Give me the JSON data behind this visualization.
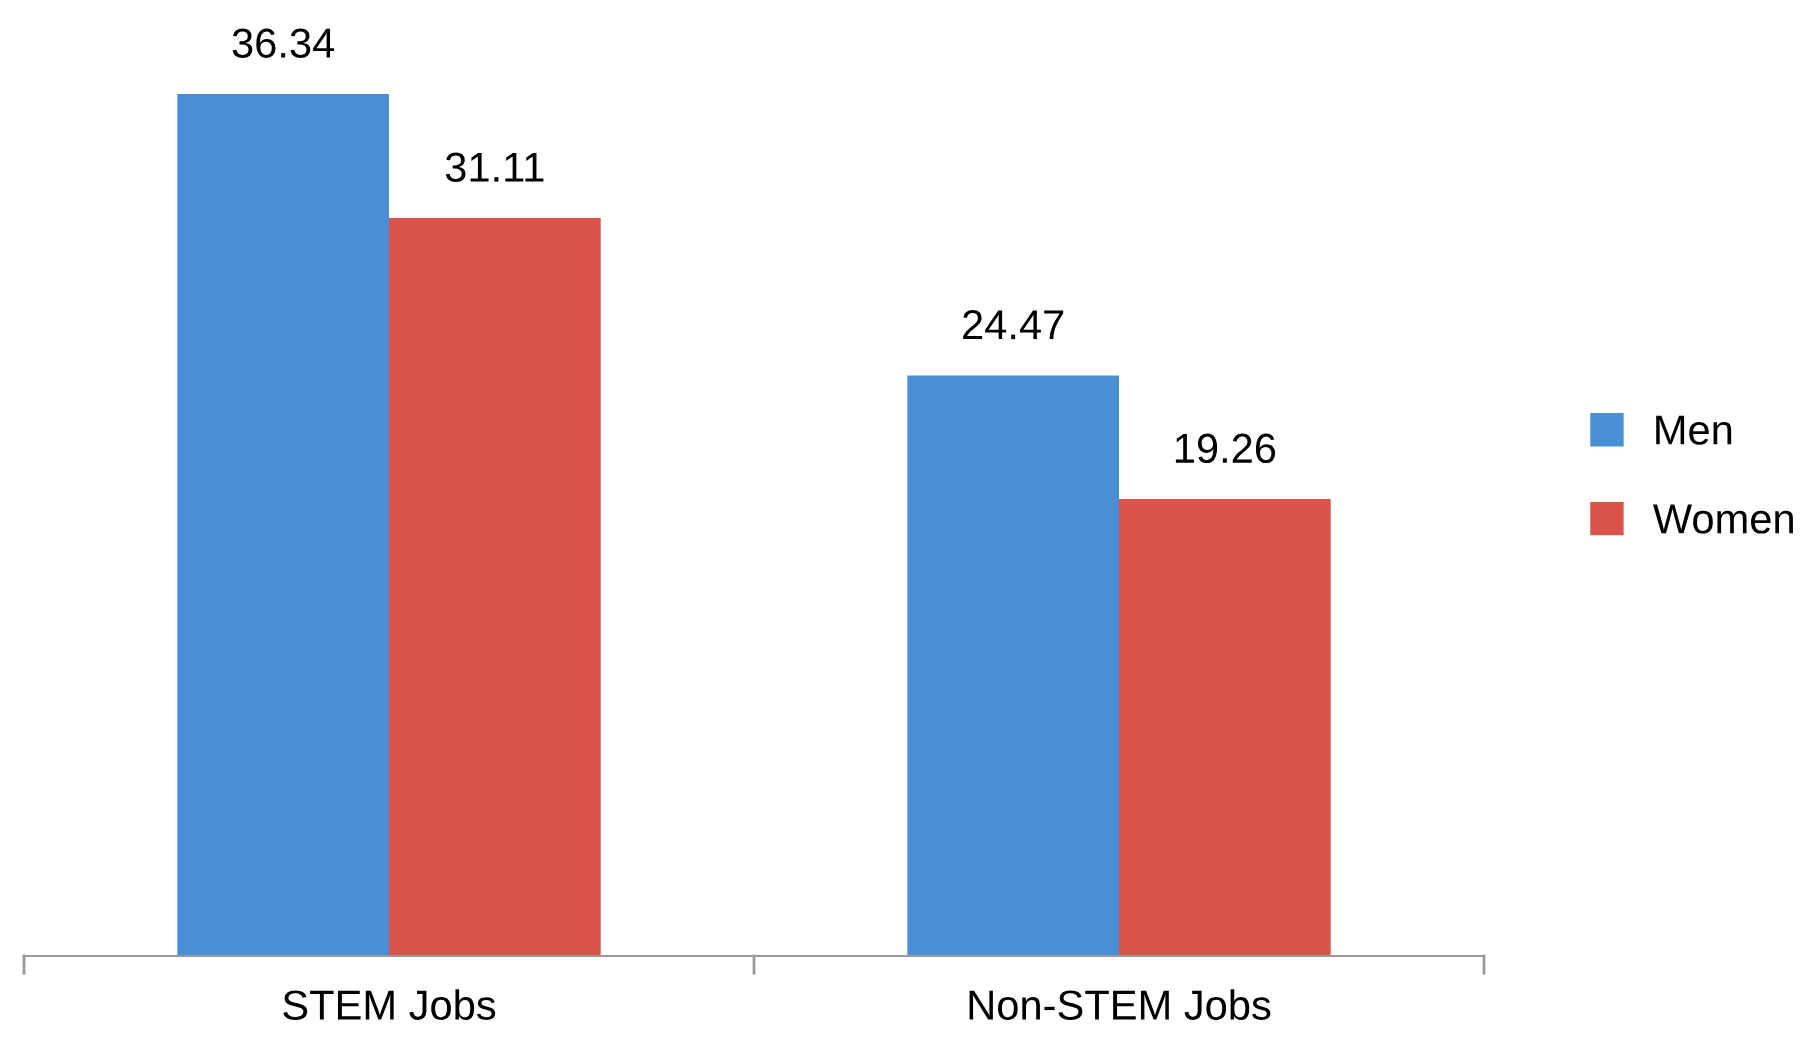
{
  "chart_data": {
    "type": "bar",
    "categories": [
      "STEM Jobs",
      "Non-STEM Jobs"
    ],
    "series": [
      {
        "name": "Men",
        "color": "#4a8fd6",
        "values": [
          36.34,
          24.47
        ]
      },
      {
        "name": "Women",
        "color": "#d9534a",
        "values": [
          31.11,
          19.26
        ]
      }
    ],
    "data_labels": true,
    "legend": "right",
    "grid": false
  }
}
